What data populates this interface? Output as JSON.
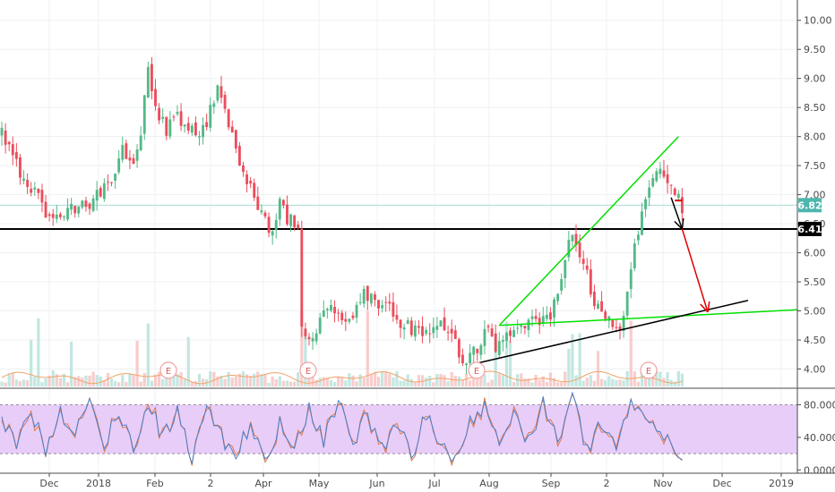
{
  "chart_data": {
    "type": "candlestick",
    "price_axis": {
      "ticks": [
        "10.00",
        "9.50",
        "9.00",
        "8.50",
        "8.00",
        "7.50",
        "7.00",
        "6.50",
        "6.00",
        "5.50",
        "5.00",
        "4.50",
        "4.00"
      ],
      "range": [
        3.7,
        10.35
      ]
    },
    "oscillator_axis": {
      "ticks": [
        "80.0000",
        "40.0000",
        "0.0000"
      ],
      "range": [
        -3,
        97
      ],
      "band": [
        20,
        80
      ]
    },
    "time_axis": {
      "labels": [
        "Dec",
        "2018",
        "Feb",
        "2",
        "Apr",
        "May",
        "Jun",
        "Jul",
        "Aug",
        "Sep",
        "2",
        "Nov",
        "Dec",
        "2019"
      ]
    },
    "price_tags": [
      {
        "value": 6.82,
        "label": "6.82",
        "color": "#4db6ac"
      },
      {
        "value": 6.41,
        "label": "6.41",
        "color": "#000000"
      }
    ],
    "horizontal_lines": [
      {
        "value": 6.82,
        "color": "#a8dcd5"
      },
      {
        "value": 6.41,
        "color": "#000000"
      }
    ],
    "earnings_markers": [
      "E",
      "E",
      "E",
      "E"
    ],
    "series_anchors": [
      [
        0,
        8.05
      ],
      [
        3,
        7.6
      ],
      [
        6,
        7.3
      ],
      [
        9,
        7.0
      ],
      [
        12,
        6.7
      ],
      [
        15,
        6.55
      ],
      [
        18,
        6.75
      ],
      [
        21,
        6.8
      ],
      [
        24,
        6.85
      ],
      [
        27,
        7.05
      ],
      [
        30,
        7.3
      ],
      [
        33,
        7.75
      ],
      [
        36,
        7.65
      ],
      [
        38,
        8.1
      ],
      [
        40,
        9.1
      ],
      [
        42,
        8.5
      ],
      [
        45,
        8.15
      ],
      [
        48,
        8.3
      ],
      [
        51,
        8.1
      ],
      [
        54,
        8.0
      ],
      [
        57,
        8.45
      ],
      [
        59,
        8.75
      ],
      [
        61,
        8.55
      ],
      [
        63,
        8.0
      ],
      [
        66,
        7.4
      ],
      [
        69,
        6.95
      ],
      [
        72,
        6.5
      ],
      [
        74,
        6.3
      ],
      [
        76,
        6.85
      ],
      [
        78,
        6.6
      ],
      [
        80,
        6.45
      ],
      [
        81,
        6.35
      ],
      [
        82,
        4.6
      ],
      [
        84,
        4.45
      ],
      [
        87,
        4.8
      ],
      [
        90,
        5.05
      ],
      [
        93,
        4.85
      ],
      [
        96,
        5.0
      ],
      [
        99,
        5.3
      ],
      [
        102,
        5.2
      ],
      [
        105,
        5.1
      ],
      [
        108,
        4.85
      ],
      [
        111,
        4.7
      ],
      [
        114,
        4.6
      ],
      [
        117,
        4.5
      ],
      [
        120,
        4.8
      ],
      [
        123,
        4.5
      ],
      [
        126,
        4.2
      ],
      [
        129,
        4.25
      ],
      [
        132,
        4.7
      ],
      [
        135,
        4.35
      ],
      [
        138,
        4.5
      ],
      [
        141,
        4.6
      ],
      [
        144,
        4.75
      ],
      [
        147,
        4.8
      ],
      [
        150,
        4.85
      ],
      [
        153,
        5.6
      ],
      [
        156,
        6.35
      ],
      [
        158,
        6.05
      ],
      [
        161,
        5.35
      ],
      [
        164,
        4.85
      ],
      [
        167,
        4.75
      ],
      [
        170,
        4.85
      ],
      [
        172,
        5.8
      ],
      [
        174,
        6.4
      ],
      [
        176,
        7.0
      ],
      [
        178,
        7.25
      ],
      [
        180,
        7.45
      ],
      [
        182,
        7.2
      ],
      [
        184,
        6.95
      ],
      [
        186,
        6.82
      ]
    ],
    "oscillator_anchors": [
      [
        0,
        62
      ],
      [
        4,
        35
      ],
      [
        8,
        78
      ],
      [
        12,
        20
      ],
      [
        16,
        70
      ],
      [
        20,
        45
      ],
      [
        24,
        82
      ],
      [
        28,
        30
      ],
      [
        32,
        75
      ],
      [
        36,
        25
      ],
      [
        40,
        85
      ],
      [
        44,
        38
      ],
      [
        48,
        72
      ],
      [
        52,
        18
      ],
      [
        56,
        80
      ],
      [
        60,
        42
      ],
      [
        64,
        15
      ],
      [
        68,
        60
      ],
      [
        72,
        10
      ],
      [
        76,
        55
      ],
      [
        80,
        20
      ],
      [
        84,
        76
      ],
      [
        88,
        35
      ],
      [
        92,
        84
      ],
      [
        96,
        30
      ],
      [
        100,
        70
      ],
      [
        104,
        22
      ],
      [
        108,
        60
      ],
      [
        112,
        15
      ],
      [
        116,
        68
      ],
      [
        120,
        28
      ],
      [
        124,
        12
      ],
      [
        128,
        58
      ],
      [
        132,
        80
      ],
      [
        136,
        30
      ],
      [
        140,
        72
      ],
      [
        144,
        35
      ],
      [
        148,
        82
      ],
      [
        152,
        40
      ],
      [
        156,
        85
      ],
      [
        160,
        25
      ],
      [
        164,
        60
      ],
      [
        168,
        30
      ],
      [
        172,
        85
      ],
      [
        176,
        70
      ],
      [
        180,
        45
      ],
      [
        184,
        25
      ],
      [
        186,
        8
      ]
    ],
    "annotations": [
      {
        "name": "upper-trend-line",
        "color": "#00e000",
        "points": [
          [
            136,
            4.75
          ],
          [
            185,
            8.0
          ]
        ]
      },
      {
        "name": "lower-green-line",
        "color": "#00e000",
        "points": [
          [
            136,
            4.75
          ],
          [
            216,
            5.02
          ]
        ]
      },
      {
        "name": "rising-support-line",
        "color": "#000000",
        "points": [
          [
            130,
            4.1
          ],
          [
            204,
            5.18
          ]
        ]
      },
      {
        "name": "black-arrow",
        "color": "#000000",
        "points": [
          [
            183,
            6.95
          ],
          [
            186,
            6.41
          ]
        ]
      },
      {
        "name": "red-arrow",
        "color": "#e00000",
        "points": [
          [
            186,
            6.41
          ],
          [
            193,
            4.98
          ]
        ]
      },
      {
        "name": "red-dash",
        "color": "#e00000",
        "points": [
          [
            184,
            6.9
          ],
          [
            186,
            6.9
          ]
        ]
      }
    ]
  }
}
